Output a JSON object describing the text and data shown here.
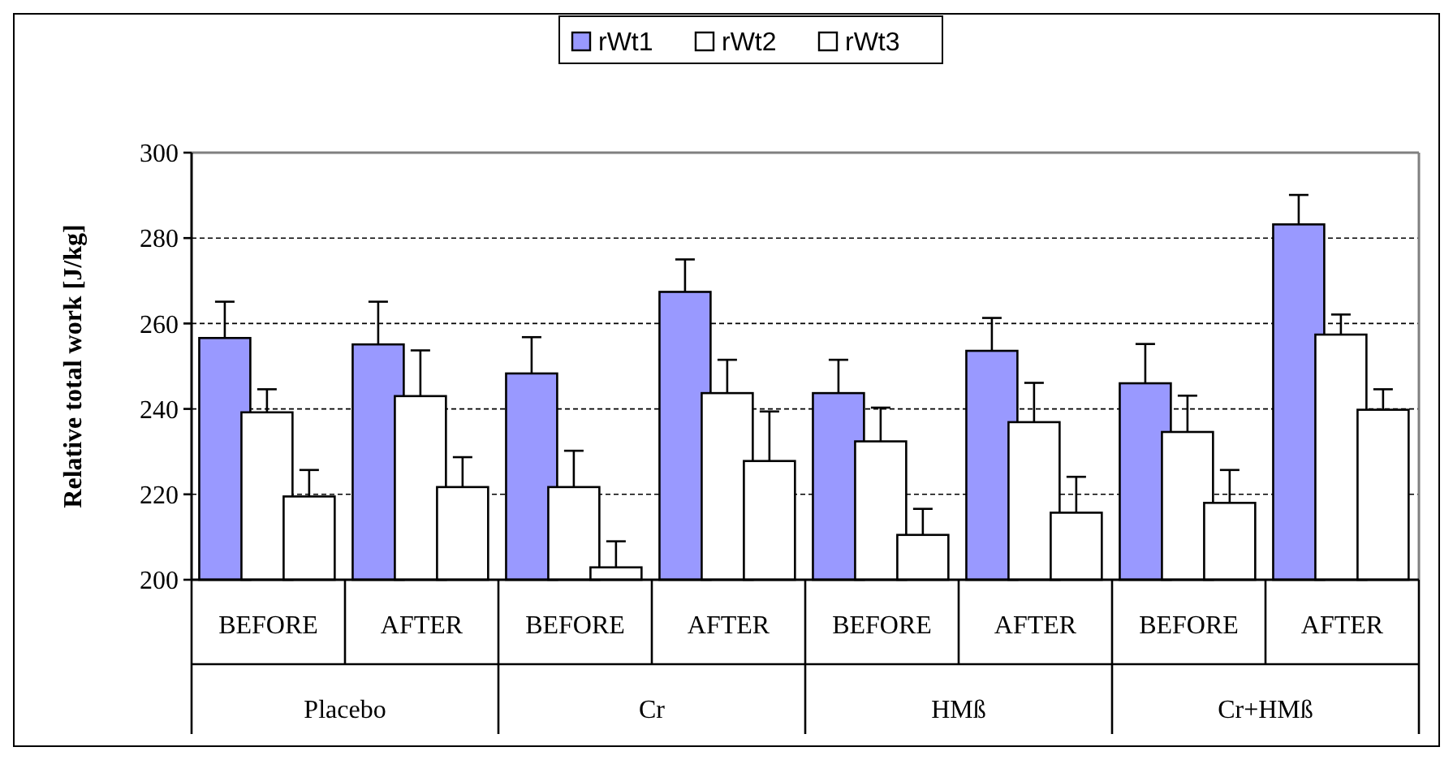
{
  "chart_data": {
    "type": "bar",
    "ylabel": "Relative total work [J/kg]",
    "categories": [
      "BEFORE",
      "AFTER",
      "BEFORE",
      "AFTER",
      "BEFORE",
      "AFTER",
      "BEFORE",
      "AFTER"
    ],
    "annotations": [
      "Placebo",
      "Cr",
      "HMß",
      "Cr+HMß"
    ],
    "series": [
      {
        "name": "rWt1",
        "color": "#9999ff",
        "values": [
          256.6,
          255.1,
          248.3,
          267.4,
          243.7,
          253.6,
          246,
          283.2
        ],
        "errors": [
          [
            256.6,
            265.1
          ],
          [
            255.1,
            265.1
          ],
          [
            248.3,
            256.8
          ],
          [
            267.4,
            275
          ],
          [
            243.7,
            251.5
          ],
          [
            253.6,
            261.3
          ],
          [
            246,
            255.2
          ],
          [
            283.2,
            290.1
          ]
        ]
      },
      {
        "name": "rWt2",
        "color": "#ffffff",
        "values": [
          239.2,
          243,
          221.7,
          243.7,
          232.4,
          236.9,
          234.6,
          257.4
        ],
        "errors": [
          [
            239.2,
            244.6
          ],
          [
            243,
            253.7
          ],
          [
            221.7,
            230.2
          ],
          [
            243.7,
            251.5
          ],
          [
            232.4,
            240.3
          ],
          [
            236.9,
            246.1
          ],
          [
            234.6,
            243.1
          ],
          [
            257.4,
            262.1
          ]
        ]
      },
      {
        "name": "rWt3",
        "color": "#ffffff",
        "values": [
          219.5,
          221.7,
          202.9,
          227.8,
          210.5,
          215.7,
          218,
          239.8
        ],
        "errors": [
          [
            219.5,
            225.7
          ],
          [
            221.7,
            228.7
          ],
          [
            202.9,
            209
          ],
          [
            227.8,
            239.4
          ],
          [
            210.5,
            216.6
          ],
          [
            215.7,
            224.1
          ],
          [
            218,
            225.7
          ],
          [
            239.8,
            244.6
          ]
        ]
      }
    ],
    "ylim": [
      200,
      300
    ],
    "yticks": [
      200,
      220,
      240,
      260,
      280,
      300
    ],
    "grid": "y",
    "legend": "top"
  }
}
